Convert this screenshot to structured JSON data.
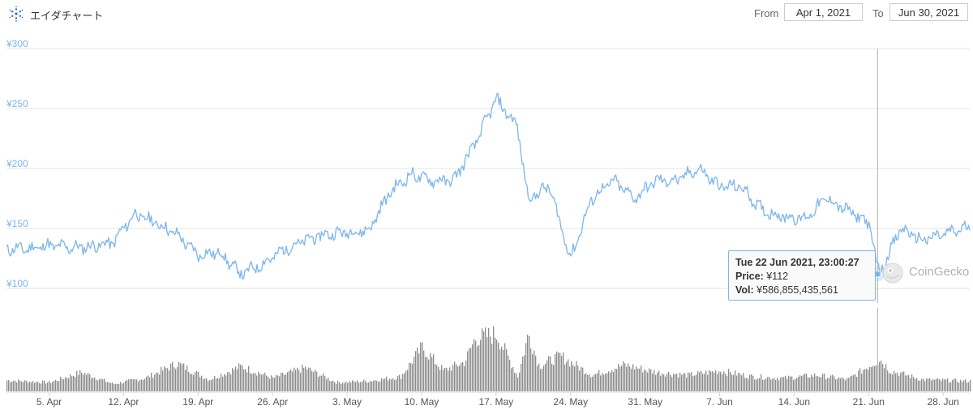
{
  "header": {
    "title": "エイダチャート",
    "from_label": "From",
    "from_value": "Apr 1, 2021",
    "to_label": "To",
    "to_value": "Jun 30, 2021",
    "logo_icon": "cardano-logo-icon"
  },
  "tooltip": {
    "date": "Tue 22 Jun 2021, 23:00:27",
    "price_label": "Price:",
    "price_value": "¥112",
    "vol_label": "Vol:",
    "vol_value": "¥586,855,435,561"
  },
  "watermark": {
    "text": "CoinGecko"
  },
  "colors": {
    "price_line": "#7cb5ec",
    "volume_bars": "#8c8c8c",
    "grid": "#e6e6e6",
    "axis_label": "#7cb5ec"
  },
  "chart_data": [
    {
      "type": "line",
      "series": [
        {
          "name": "Price",
          "x": [
            "2021-04-01",
            "2021-04-03",
            "2021-04-05",
            "2021-04-07",
            "2021-04-09",
            "2021-04-11",
            "2021-04-13",
            "2021-04-15",
            "2021-04-17",
            "2021-04-19",
            "2021-04-21",
            "2021-04-23",
            "2021-04-25",
            "2021-04-27",
            "2021-04-29",
            "2021-05-01",
            "2021-05-03",
            "2021-05-05",
            "2021-05-07",
            "2021-05-09",
            "2021-05-11",
            "2021-05-13",
            "2021-05-15",
            "2021-05-17",
            "2021-05-19",
            "2021-05-20",
            "2021-05-22",
            "2021-05-24",
            "2021-05-26",
            "2021-05-28",
            "2021-05-30",
            "2021-06-01",
            "2021-06-03",
            "2021-06-05",
            "2021-06-07",
            "2021-06-09",
            "2021-06-11",
            "2021-06-13",
            "2021-06-15",
            "2021-06-17",
            "2021-06-19",
            "2021-06-21",
            "2021-06-22",
            "2021-06-24",
            "2021-06-26",
            "2021-06-28",
            "2021-06-30"
          ],
          "values": [
            133,
            133,
            136,
            134,
            135,
            138,
            162,
            155,
            145,
            128,
            130,
            112,
            120,
            132,
            140,
            145,
            147,
            148,
            180,
            195,
            190,
            190,
            220,
            258,
            235,
            175,
            185,
            125,
            175,
            190,
            175,
            190,
            190,
            200,
            185,
            185,
            165,
            160,
            158,
            175,
            165,
            155,
            112,
            150,
            140,
            145,
            150
          ]
        }
      ],
      "x_ticks": [
        "5. Apr",
        "12. Apr",
        "19. Apr",
        "26. Apr",
        "3. May",
        "10. May",
        "17. May",
        "24. May",
        "31. May",
        "7. Jun",
        "14. Jun",
        "21. Jun",
        "28. Jun"
      ],
      "y_ticks": [
        "¥100",
        "¥150",
        "¥200",
        "¥250",
        "¥300"
      ],
      "ylim": [
        100,
        300
      ],
      "grid": true,
      "crosshair_x": "2021-06-22"
    },
    {
      "type": "bar",
      "series": [
        {
          "name": "Vol",
          "x": [
            "2021-04-01",
            "2021-04-05",
            "2021-04-08",
            "2021-04-11",
            "2021-04-14",
            "2021-04-17",
            "2021-04-20",
            "2021-04-23",
            "2021-04-26",
            "2021-04-29",
            "2021-05-02",
            "2021-05-05",
            "2021-05-08",
            "2021-05-10",
            "2021-05-12",
            "2021-05-14",
            "2021-05-15",
            "2021-05-17",
            "2021-05-19",
            "2021-05-20",
            "2021-05-21",
            "2021-05-23",
            "2021-05-26",
            "2021-05-29",
            "2021-06-01",
            "2021-06-04",
            "2021-06-07",
            "2021-06-10",
            "2021-06-13",
            "2021-06-16",
            "2021-06-19",
            "2021-06-22",
            "2021-06-23",
            "2021-06-26",
            "2021-06-30"
          ],
          "values": [
            15,
            12,
            26,
            10,
            18,
            38,
            16,
            34,
            18,
            32,
            12,
            14,
            20,
            60,
            28,
            40,
            72,
            78,
            20,
            78,
            35,
            48,
            22,
            36,
            26,
            22,
            28,
            20,
            18,
            22,
            16,
            44,
            28,
            16,
            14
          ]
        }
      ],
      "ylim": [
        0,
        100
      ],
      "crosshair_x": "2021-06-22"
    }
  ]
}
